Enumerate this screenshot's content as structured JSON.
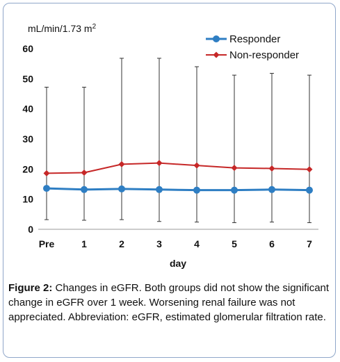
{
  "chart_data": {
    "type": "line",
    "ylabel_base": "mL/min/1.73 m",
    "ylabel_sup": "2",
    "xlabel": "day",
    "categories": [
      "Pre",
      "1",
      "2",
      "3",
      "4",
      "5",
      "6",
      "7"
    ],
    "ylim": [
      0,
      60
    ],
    "yticks": [
      "0",
      "10",
      "20",
      "30",
      "40",
      "50",
      "60"
    ],
    "grid": false,
    "legend_position": "top-right",
    "series": [
      {
        "name": "Responder",
        "color": "#2e7ec3",
        "marker": "circle",
        "values": [
          13.6,
          13.2,
          13.4,
          13.2,
          13.0,
          13.0,
          13.2,
          13.0
        ],
        "err_upper": [
          47.2,
          47.2,
          56.8,
          56.8,
          54.0,
          51.2,
          51.8,
          51.2
        ],
        "err_lower": [
          3.2,
          3.0,
          3.2,
          2.6,
          2.4,
          2.2,
          2.4,
          2.2
        ]
      },
      {
        "name": "Non-responder",
        "color": "#c62828",
        "marker": "diamond",
        "values": [
          18.6,
          18.8,
          21.6,
          22.0,
          21.2,
          20.4,
          20.2,
          19.9
        ]
      }
    ]
  },
  "caption": {
    "label": "Figure 2:",
    "text": " Changes in eGFR. Both groups did not show the significant change in eGFR over 1 week. Worsening renal failure was not appreciated. Abbreviation: eGFR, estimated glomerular filtration rate."
  }
}
